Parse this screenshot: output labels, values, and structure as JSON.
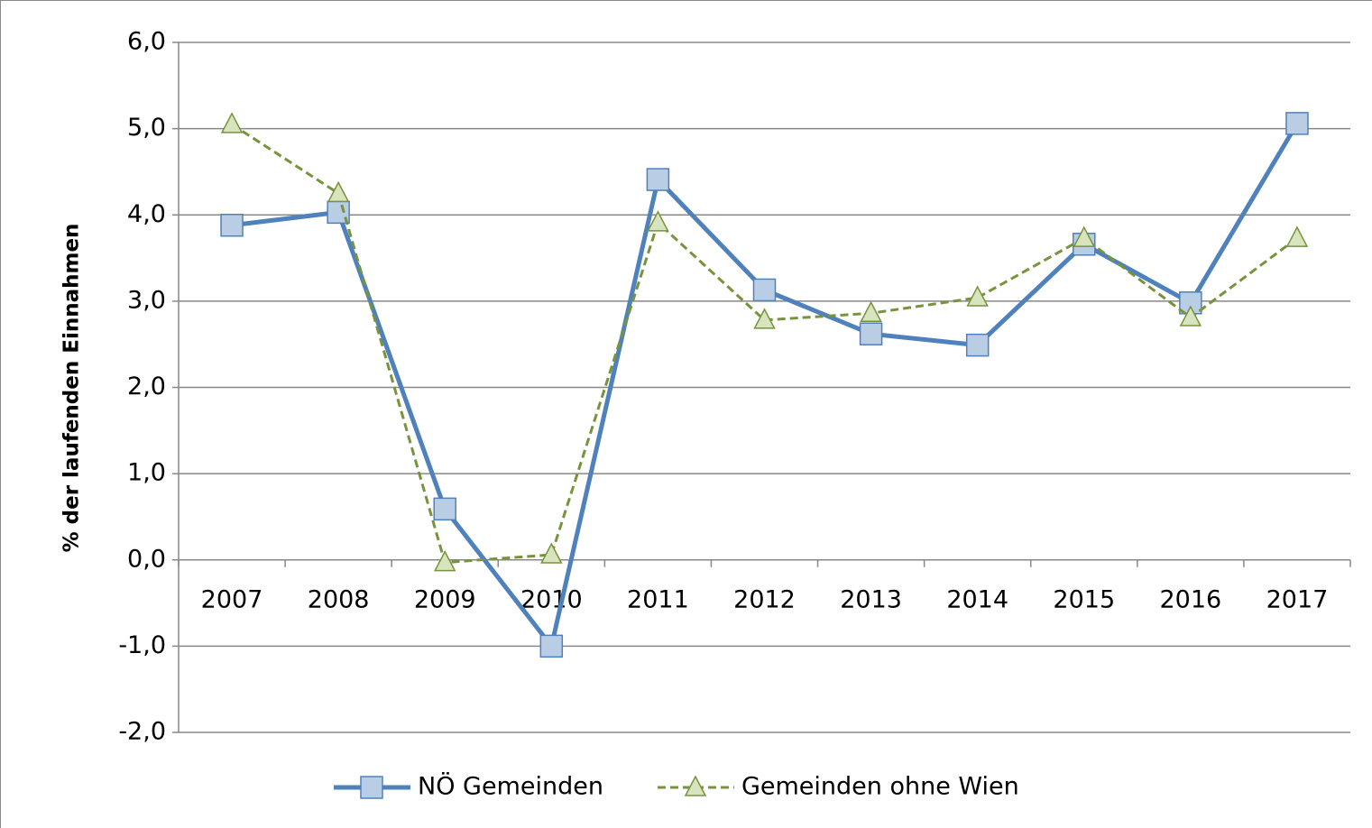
{
  "chart_data": {
    "type": "line",
    "y_label": "% der laufenden Einnahmen",
    "categories": [
      "2007",
      "2008",
      "2009",
      "2010",
      "2011",
      "2012",
      "2013",
      "2014",
      "2015",
      "2016",
      "2017"
    ],
    "series": [
      {
        "name": "NÖ Gemeinden",
        "color": "#4f81bd",
        "marker": "square",
        "marker_fill": "#b9cde5",
        "dashed": false,
        "values": [
          3.88,
          4.03,
          0.59,
          -1.0,
          4.41,
          3.13,
          2.62,
          2.49,
          3.66,
          2.98,
          5.06
        ]
      },
      {
        "name": "Gemeinden ohne Wien",
        "color": "#77933c",
        "marker": "triangle",
        "marker_fill": "#d7e4bd",
        "dashed": true,
        "values": [
          5.05,
          4.25,
          -0.03,
          0.06,
          3.91,
          2.78,
          2.86,
          3.04,
          3.73,
          2.81,
          3.73
        ]
      }
    ],
    "ylim": [
      -2,
      6
    ],
    "yticks": [
      {
        "value": -2,
        "label": "-2,0"
      },
      {
        "value": -1,
        "label": "-1,0"
      },
      {
        "value": 0,
        "label": "0,0"
      },
      {
        "value": 1,
        "label": "1,0"
      },
      {
        "value": 2,
        "label": "2,0"
      },
      {
        "value": 3,
        "label": "3,0"
      },
      {
        "value": 4,
        "label": "4,0"
      },
      {
        "value": 5,
        "label": "5,0"
      },
      {
        "value": 6,
        "label": "6,0"
      }
    ],
    "grid": true,
    "legend": "bottom"
  }
}
